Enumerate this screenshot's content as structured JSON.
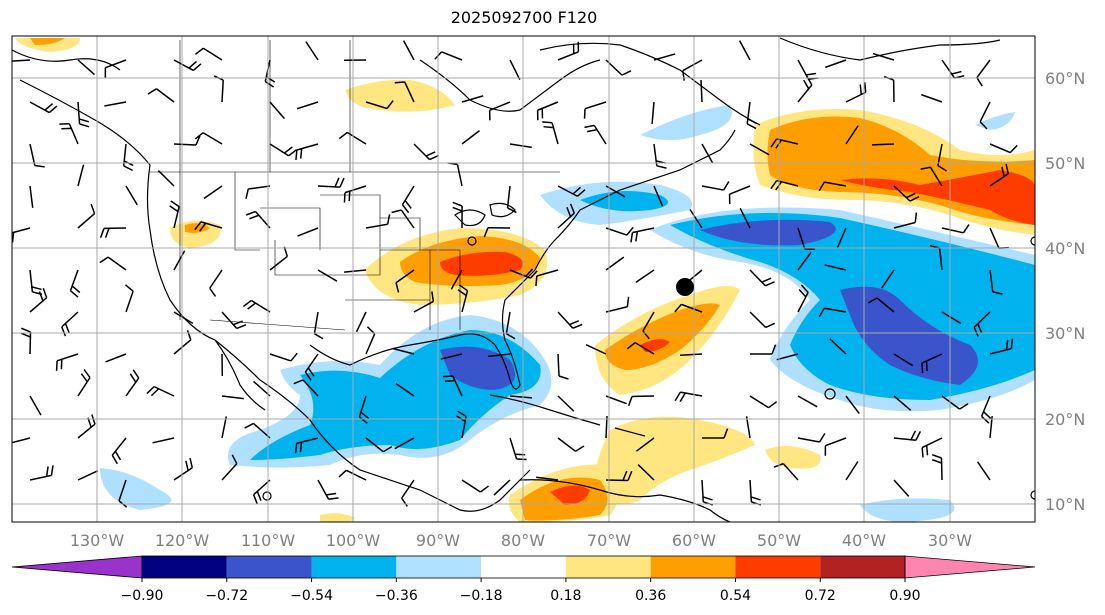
{
  "title": "2025092700 F120",
  "lon_labels": [
    "130°W",
    "120°W",
    "110°W",
    "100°W",
    "90°W",
    "80°W",
    "70°W",
    "60°W",
    "50°W",
    "40°W",
    "30°W"
  ],
  "lat_labels": [
    "60°N",
    "50°N",
    "40°N",
    "30°N",
    "20°N",
    "10°N"
  ],
  "colorbar": {
    "colors": [
      "#9933cc",
      "#000080",
      "#3a55cc",
      "#00b2ee",
      "#b0e0ff",
      "#ffffff",
      "#ffe680",
      "#ff9e00",
      "#ff3c00",
      "#b22222",
      "#ff85b0"
    ],
    "ticks": [
      "−0.90",
      "−0.72",
      "−0.54",
      "−0.36",
      "−0.18",
      "0.18",
      "0.36",
      "0.54",
      "0.72",
      "0.90"
    ]
  },
  "storm_marker": {
    "lon": -60,
    "lat": 35.5
  }
}
